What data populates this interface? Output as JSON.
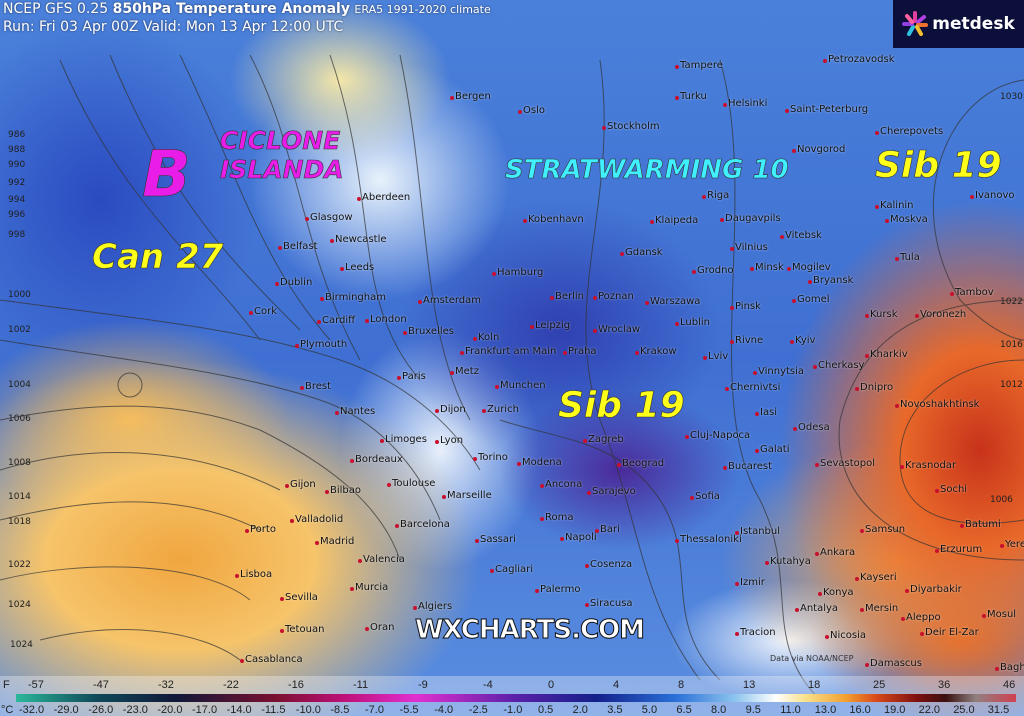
{
  "header": {
    "model": "NCEP GFS 0.25",
    "product": "850hPa Temperature Anomaly",
    "climate": "ERA5 1991-2020 climate",
    "run_line": "Run: Fri 03 Apr 00Z Valid: Mon 13 Apr 12:00 UTC"
  },
  "logo": {
    "text": "metdesk"
  },
  "annotations": {
    "low": "B",
    "cyclone_1": "CICLONE",
    "cyclone_2": "ISLANDA",
    "can": "Can 27",
    "strat": "STRATWARMING 10",
    "sib_east": "Sib 19",
    "sib_center": "Sib 19",
    "annotation_colors": {
      "magenta": "#e81ee8",
      "yellow": "#ffff1a",
      "cyan": "#40f0ff"
    }
  },
  "watermark": "WXCHARTS.COM",
  "credit": "Data via NOAA/NCEP",
  "cities": [
    "Tampere",
    "Petrozavodsk",
    "Oslo",
    "Turku",
    "Helsinki",
    "Saint-Peterburg",
    "Bergen",
    "Stockholm",
    "Novgorod",
    "Cherepovets",
    "Aberdeen",
    "Riga",
    "Kalinin",
    "Ivanovo",
    "Klaipeda",
    "Daugavpils",
    "Vitebsk",
    "Moskva",
    "Kobenhavn",
    "Glasgow",
    "Newcastle",
    "Vilnius",
    "Gdansk",
    "Belfast",
    "Leeds",
    "Grodno",
    "Minsk",
    "Mogilev",
    "Tula",
    "Hamburg",
    "Dublin",
    "Bryansk",
    "Tambov",
    "Birmingham",
    "Berlin",
    "Poznan",
    "Warszawa",
    "Pinsk",
    "Gomel",
    "Amsterdam",
    "Cork",
    "Cardiff",
    "London",
    "Kursk",
    "Voronezh",
    "Bruxelles",
    "Koln",
    "Leipzig",
    "Wroclaw",
    "Lublin",
    "Rivne",
    "Kyiv",
    "Plymouth",
    "Frankfurt am Main",
    "Praha",
    "Krakow",
    "Lviv",
    "Kharkiv",
    "Paris",
    "Metz",
    "Vinnytsia",
    "Cherkasy",
    "Brest",
    "Dnipro",
    "Novoshakhtinsk",
    "Nantes",
    "Dijon",
    "Munchen",
    "Zurich",
    "Chernivtsi",
    "Iasi",
    "Limoges",
    "Lyon",
    "Cluj-Napoca",
    "Odesa",
    "Zagreb",
    "Galati",
    "Sevastopol",
    "Krasnodar",
    "Bordeaux",
    "Torino",
    "Modena",
    "Beograd",
    "Bucarest",
    "Sochi",
    "Toulouse",
    "Marseille",
    "Ancona",
    "Sarajevo",
    "Sofia",
    "Batumi",
    "Yerevan",
    "Gijon",
    "Bilbao",
    "Samsun",
    "Istanbul",
    "Porto",
    "Valladolid",
    "Barcelona",
    "Roma",
    "Bari",
    "Thessaloniki",
    "Erzurum",
    "Ankara",
    "Madrid",
    "Valencia",
    "Napoli",
    "Sassari",
    "Cagliari",
    "Cosenza",
    "Kutahya",
    "Kayseri",
    "Izmir",
    "Diyarbakir",
    "Lisboa",
    "Sevilla",
    "Murcia",
    "Palermo",
    "Konya",
    "Siracusa",
    "Algiers",
    "Oran",
    "Tetouan",
    "Antalya",
    "Mersin",
    "Aleppo",
    "Mosul",
    "Tracion",
    "Nicosia",
    "Deir El-Zar",
    "Casablanca",
    "Damascus",
    "Baghdad"
  ],
  "isobar_labels": [
    "986",
    "988",
    "990",
    "992",
    "994",
    "996",
    "998",
    "1000",
    "1002",
    "1004",
    "1006",
    "1008",
    "1014",
    "1018",
    "1022",
    "1024",
    "1024",
    "1030",
    "1022",
    "1016",
    "1012",
    "1006"
  ],
  "colorbar": {
    "f_unit": "F",
    "c_unit": "°C",
    "fahrenheit": [
      "-57",
      "-47",
      "-32",
      "-22",
      "-16",
      "-11",
      "-9",
      "-4",
      "0",
      "4",
      "8",
      "13",
      "18",
      "25",
      "36",
      "46"
    ],
    "celsius": [
      "-32.0",
      "-29.0",
      "-26.0",
      "-23.0",
      "-20.0",
      "-17.0",
      "-14.0",
      "-11.5",
      "-10.0",
      "-8.5",
      "-7.0",
      "-5.5",
      "-4.0",
      "-2.5",
      "-1.0",
      "0.5",
      "2.0",
      "3.5",
      "5.0",
      "6.5",
      "8.0",
      "9.5",
      "11.0",
      "13.0",
      "16.0",
      "19.0",
      "22.0",
      "25.0",
      "31.5"
    ]
  }
}
